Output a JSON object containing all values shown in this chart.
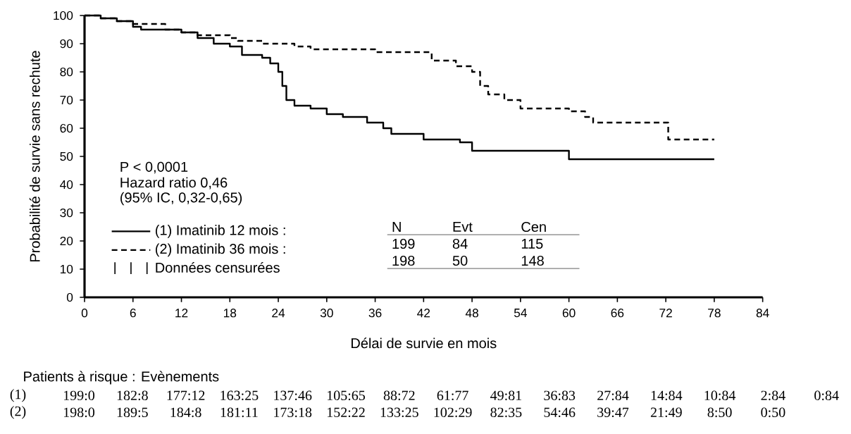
{
  "chart_data": {
    "type": "step",
    "xlabel": "Délai de survie en mois",
    "ylabel": "Probabilité de survie sans rechute",
    "xlim": [
      0,
      84
    ],
    "xticks": [
      0,
      6,
      12,
      18,
      24,
      30,
      36,
      42,
      48,
      54,
      60,
      66,
      72,
      78,
      84
    ],
    "ylim": [
      0,
      100
    ],
    "yticks": [
      0,
      10,
      20,
      30,
      40,
      50,
      60,
      70,
      80,
      90,
      100
    ],
    "legend": "bottom left",
    "series": [
      {
        "name": "(1) Imatinib 12 mois :",
        "color": "#000000",
        "line_style": "solid",
        "x": [
          0,
          2,
          4,
          6,
          7,
          12,
          14,
          16,
          18,
          19.5,
          22,
          23,
          24,
          24.5,
          25,
          26,
          28,
          30,
          32,
          35,
          37,
          38,
          42,
          46.5,
          48,
          60,
          78
        ],
        "values": [
          100,
          99,
          98,
          96,
          95,
          94,
          92,
          90,
          89,
          86,
          85,
          83,
          80,
          75,
          70,
          68,
          67,
          65,
          64,
          62,
          60,
          58,
          56,
          55,
          52,
          49,
          49
        ]
      },
      {
        "name": "(2) Imatinib 36 mois :",
        "color": "#000000",
        "line_style": "dashed",
        "x": [
          0,
          2,
          4,
          6,
          10,
          12,
          14,
          18,
          19,
          22,
          26,
          28,
          36,
          43,
          46,
          48,
          49,
          50,
          52,
          54,
          60,
          62,
          63,
          72.3,
          78
        ],
        "values": [
          100,
          99,
          98,
          97,
          95,
          94,
          93,
          92,
          91,
          90,
          89,
          88,
          87,
          84,
          82,
          80,
          75,
          72,
          70,
          67,
          66,
          64,
          62,
          56,
          56
        ]
      }
    ],
    "annotations": [
      "P < 0,0001",
      "Hazard ratio 0,46",
      "(95% IC, 0,32-0,65)",
      "Données censurées",
      "N",
      "Evt",
      "Cen",
      "199",
      "84",
      "115",
      "198",
      "50",
      "148",
      "Patients à risque : Evènements",
      "(1)",
      "(2)",
      "199:0",
      "182:8",
      "177:12",
      "163:25",
      "137:46",
      "105:65",
      "88:72",
      "61:77",
      "49:81",
      "36:83",
      "27:84",
      "14:84",
      "10:84",
      "2:84",
      "0:84",
      "198:0",
      "189:5",
      "184:8",
      "181:11",
      "173:18",
      "152:22",
      "133:25",
      "102:29",
      "82:35",
      "54:46",
      "39:47",
      "21:49",
      "8:50",
      "0:50"
    ]
  }
}
